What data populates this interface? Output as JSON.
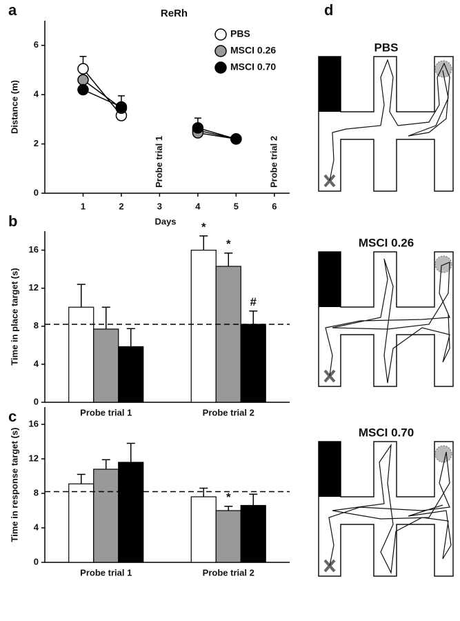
{
  "chart_data": [
    {
      "type": "line",
      "panel_label": "a",
      "title": "ReRh",
      "x_label": "Days",
      "y_label": "Distance (m)",
      "x": [
        1,
        2,
        3,
        4,
        5,
        6
      ],
      "xlim": [
        0,
        6.4
      ],
      "xticks": [
        1,
        2,
        3,
        4,
        5,
        6
      ],
      "ylim": [
        0,
        7
      ],
      "yticks": [
        0,
        2,
        4,
        6
      ],
      "legend": "upper right",
      "series": [
        {
          "name": "PBS",
          "color": "#ffffff",
          "values": [
            5.05,
            3.15,
            null,
            2.55,
            2.2,
            null
          ],
          "errors": [
            0.5,
            null,
            null,
            null,
            null,
            null
          ]
        },
        {
          "name": "MSCI 0.26",
          "color": "#999999",
          "values": [
            4.6,
            3.45,
            null,
            2.45,
            2.2,
            null
          ],
          "errors": [
            null,
            null,
            null,
            null,
            null,
            null
          ]
        },
        {
          "name": "MSCI 0.70",
          "color": "#000000",
          "values": [
            4.2,
            3.5,
            null,
            2.65,
            2.2,
            null
          ],
          "errors": [
            null,
            0.45,
            null,
            0.4,
            null,
            null
          ]
        }
      ],
      "annotations": [
        {
          "label": "Probe trial 1",
          "x": 3
        },
        {
          "label": "Probe trial 2",
          "x": 6
        }
      ]
    },
    {
      "type": "bar",
      "panel_label": "b",
      "y_label": "Time in place target (s)",
      "categories": [
        "Probe trial 1",
        "Probe trial 2"
      ],
      "ylim": [
        0,
        18
      ],
      "yticks": [
        0,
        4,
        8,
        12,
        16
      ],
      "ref_line": 8.2,
      "series": [
        {
          "name": "PBS",
          "color": "#ffffff",
          "values": [
            10.0,
            16.0
          ],
          "errors": [
            2.4,
            1.5
          ]
        },
        {
          "name": "MSCI 0.26",
          "color": "#999999",
          "values": [
            7.7,
            14.3
          ],
          "errors": [
            2.3,
            1.4
          ]
        },
        {
          "name": "MSCI 0.70",
          "color": "#000000",
          "values": [
            5.85,
            8.2
          ],
          "errors": [
            1.9,
            1.4
          ]
        }
      ],
      "annotations": [
        {
          "label": "*",
          "series": 0,
          "index": 1
        },
        {
          "label": "*",
          "series": 1,
          "index": 1
        },
        {
          "label": "#",
          "series": 2,
          "index": 1
        }
      ]
    },
    {
      "type": "bar",
      "panel_label": "c",
      "y_label": "Time in response target (s)",
      "categories": [
        "Probe trial 1",
        "Probe trial 2"
      ],
      "ylim": [
        0,
        18
      ],
      "yticks": [
        0,
        4,
        8,
        12,
        16
      ],
      "ref_line": 8.2,
      "series": [
        {
          "name": "PBS",
          "color": "#ffffff",
          "values": [
            9.1,
            7.6
          ],
          "errors": [
            1.1,
            1.0
          ]
        },
        {
          "name": "MSCI 0.26",
          "color": "#999999",
          "values": [
            10.8,
            6.0
          ],
          "errors": [
            1.1,
            0.5
          ]
        },
        {
          "name": "MSCI 0.70",
          "color": "#000000",
          "values": [
            11.6,
            6.6
          ],
          "errors": [
            2.2,
            1.3
          ]
        }
      ],
      "annotations": [
        {
          "label": "*",
          "series": 1,
          "index": 1
        }
      ]
    },
    {
      "type": "diagram",
      "panel_label": "d",
      "titles": [
        "PBS",
        "MSCI 0.26",
        "MSCI 0.70"
      ]
    }
  ]
}
